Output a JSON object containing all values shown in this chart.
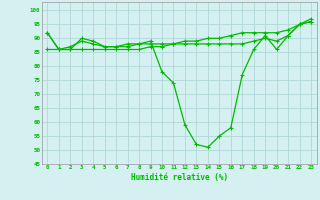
{
  "xlabel": "Humidité relative (%)",
  "background_color": "#d4f0f0",
  "grid_color": "#b0d8d8",
  "line_color": "#00bb00",
  "xlim": [
    -0.5,
    23.5
  ],
  "ylim": [
    45,
    103
  ],
  "yticks": [
    45,
    50,
    55,
    60,
    65,
    70,
    75,
    80,
    85,
    90,
    95,
    100
  ],
  "xticks": [
    0,
    1,
    2,
    3,
    4,
    5,
    6,
    7,
    8,
    9,
    10,
    11,
    12,
    13,
    14,
    15,
    16,
    17,
    18,
    19,
    20,
    21,
    22,
    23
  ],
  "series1": [
    92,
    86,
    86,
    90,
    89,
    87,
    87,
    88,
    88,
    89,
    78,
    74,
    59,
    52,
    51,
    55,
    58,
    77,
    86,
    91,
    86,
    91,
    95,
    96
  ],
  "series2": [
    86,
    86,
    86,
    86,
    86,
    86,
    86,
    86,
    86,
    87,
    87,
    88,
    89,
    89,
    90,
    90,
    91,
    92,
    92,
    92,
    92,
    93,
    95,
    97
  ],
  "series3": [
    92,
    86,
    87,
    89,
    88,
    87,
    87,
    87,
    88,
    88,
    88,
    88,
    88,
    88,
    88,
    88,
    88,
    88,
    89,
    90,
    89,
    91,
    95,
    96
  ]
}
